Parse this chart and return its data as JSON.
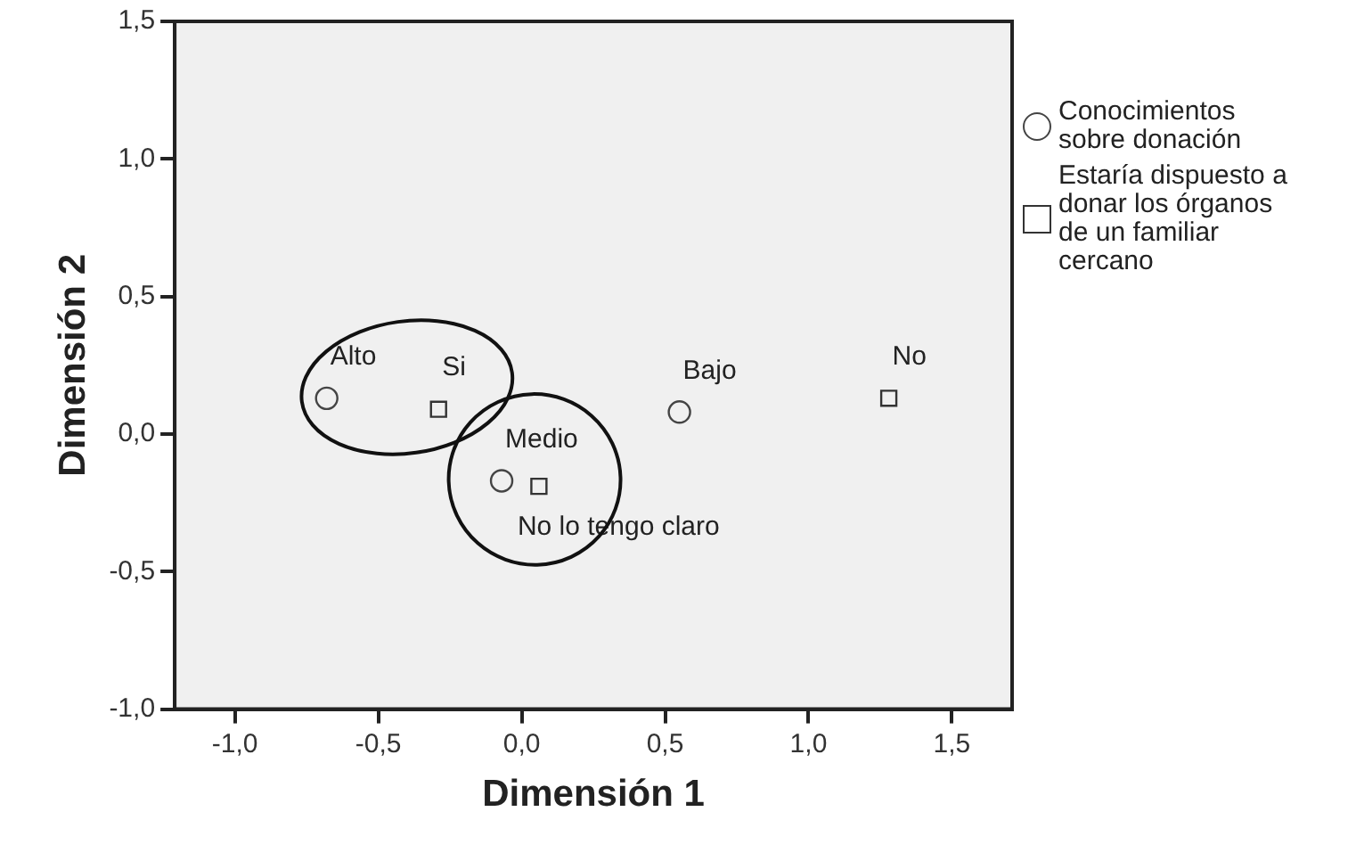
{
  "chart_data": {
    "type": "scatter",
    "xlabel": "Dimensión 1",
    "ylabel": "Dimensión 2",
    "xlim": [
      -1.21,
      1.71
    ],
    "ylim": [
      -1,
      1.5
    ],
    "xticks": [
      {
        "value": -1,
        "label": "-1,0"
      },
      {
        "value": -0.5,
        "label": "-0,5"
      },
      {
        "value": 0,
        "label": "0,0"
      },
      {
        "value": 0.5,
        "label": "0,5"
      },
      {
        "value": 1,
        "label": "1,0"
      },
      {
        "value": 1.5,
        "label": "1,5"
      }
    ],
    "yticks": [
      {
        "value": -1,
        "label": "-1,0"
      },
      {
        "value": -0.5,
        "label": "-0,5"
      },
      {
        "value": 0,
        "label": "0,0"
      },
      {
        "value": 0.5,
        "label": "0,5"
      },
      {
        "value": 1,
        "label": "1,0"
      },
      {
        "value": 1.5,
        "label": "1,5"
      }
    ],
    "grid": false,
    "legend": "right",
    "series": [
      {
        "name": "Conocimientos sobre donación",
        "color": "#444444",
        "marker": "circle",
        "x": [
          -0.68,
          -0.07,
          0.55
        ],
        "values": [
          0.13,
          -0.17,
          0.08
        ]
      },
      {
        "name": "Estaría dispuesto a donar los órganos de un familiar cercano",
        "color": "#333333",
        "marker": "square",
        "x": [
          -0.29,
          0.06,
          1.28
        ],
        "values": [
          0.09,
          -0.19,
          0.13
        ]
      }
    ],
    "annotations": [
      {
        "text": "Alto",
        "x": -0.68,
        "y": 0.13
      },
      {
        "text": "Medio",
        "x": -0.07,
        "y": -0.17
      },
      {
        "text": "Bajo",
        "x": 0.55,
        "y": 0.08
      },
      {
        "text": "Si",
        "x": -0.29,
        "y": 0.09
      },
      {
        "text": "No lo tengo claro",
        "x": 0.06,
        "y": -0.19
      },
      {
        "text": "No",
        "x": 1.28,
        "y": 0.13
      }
    ]
  }
}
